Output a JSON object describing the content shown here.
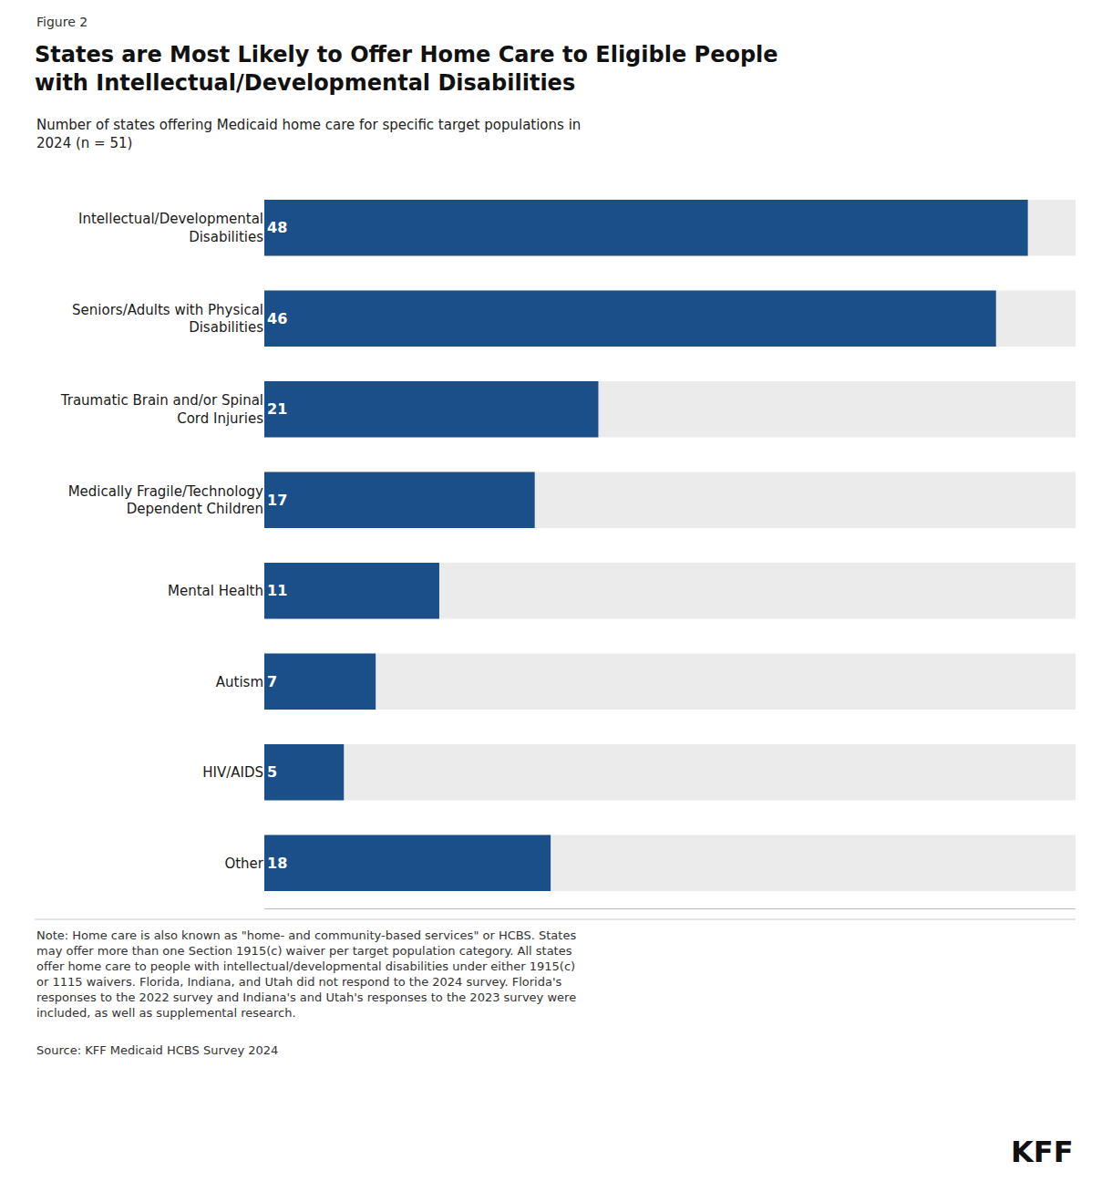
{
  "chart_data": {
    "type": "bar",
    "orientation": "horizontal",
    "title": "States are Most Likely to Offer Home Care to Eligible People\nwith Intellectual/Developmental Disabilities",
    "subtitle": "Number of states offering Medicaid home care for specific target populations in\n2024 (n = 51)",
    "annotations": [
      "Figure 2",
      "Note: Home care is also known as \"home- and community-based services\" or HCBS. States\nmay offer more than one Section 1915(c) waiver per target population category. All states\noffer home care to people with intellectual/developmental disabilities under either 1915(c)\nor 1115 waivers. Florida, Indiana, and Utah did not respond to the 2024 survey. Florida's\nresponses to the 2022 survey and Indiana's and Utah's responses to the 2023 survey were\nincluded, as well as supplemental research.",
      "Source: KFF Medicaid HCBS Survey 2024",
      "KFF"
    ],
    "categories": [
      "Intellectual/Developmental\nDisabilities",
      "Seniors/Adults with Physical\nDisabilities",
      "Traumatic Brain and/or Spinal\nCord Injuries",
      "Medically Fragile/Technology\nDependent Children",
      "Mental Health",
      "Autism",
      "HIV/AIDS",
      "Other"
    ],
    "values": [
      48,
      46,
      21,
      17,
      11,
      7,
      5,
      18
    ],
    "color": "#1b4f8a",
    "xlim": [
      0,
      51
    ],
    "data_labels": true,
    "tick_labels": "y",
    "grid": false
  }
}
